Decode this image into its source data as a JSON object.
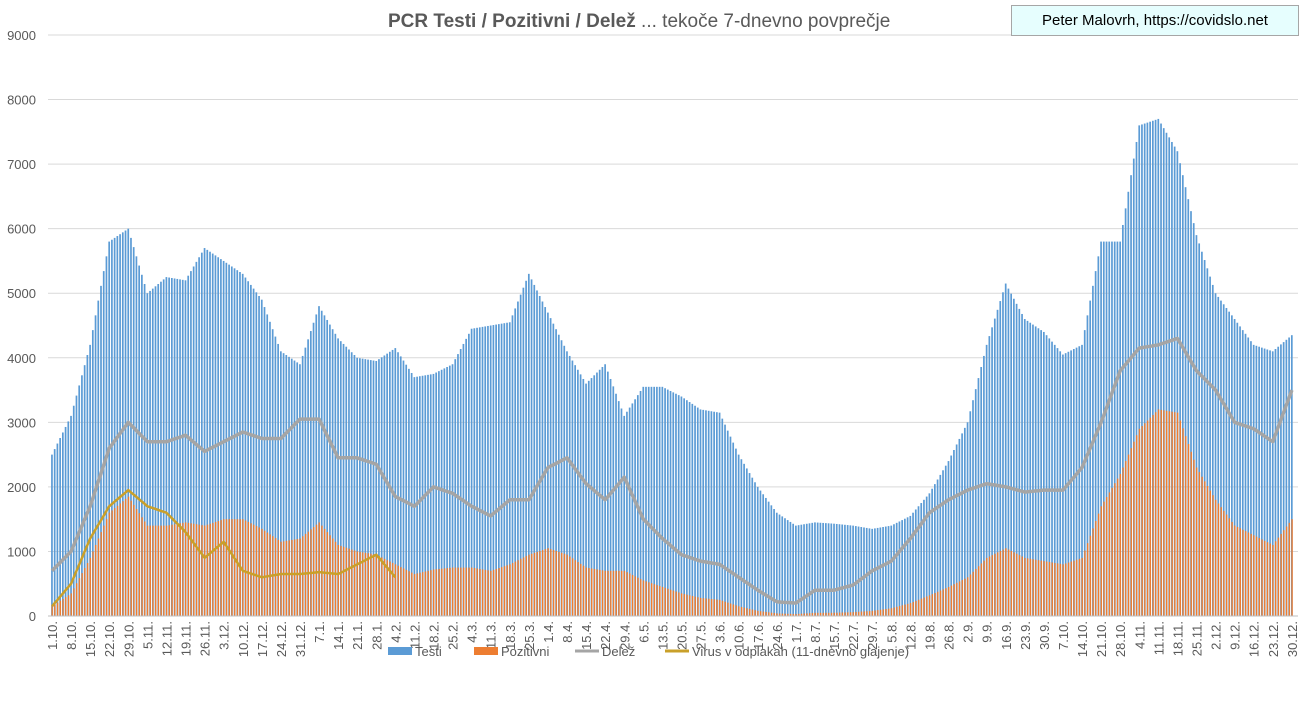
{
  "header": {
    "title_bold": "PCR Testi / Pozitivni / Delež",
    "title_rest": " ... tekoče 7-dnevno povprečje",
    "credit": "Peter Malovrh, https://covidslo.net"
  },
  "chart_data": {
    "type": "bar",
    "title": "PCR Testi / Pozitivni / Delež ... tekoče 7-dnevno povprečje",
    "xlabel": "",
    "ylabel": "",
    "ylim": [
      0,
      9000
    ],
    "yticks": [
      0,
      1000,
      2000,
      3000,
      4000,
      5000,
      6000,
      7000,
      8000,
      9000
    ],
    "grid": true,
    "legend_position": "bottom",
    "x_interval_days": 7,
    "categories": [
      "1.10.",
      "8.10.",
      "15.10.",
      "22.10.",
      "29.10.",
      "5.11.",
      "12.11.",
      "19.11.",
      "26.11.",
      "3.12.",
      "10.12.",
      "17.12.",
      "24.12.",
      "31.12.",
      "7.1.",
      "14.1.",
      "21.1.",
      "28.1.",
      "4.2.",
      "11.2.",
      "18.2.",
      "25.2.",
      "4.3.",
      "11.3.",
      "18.3.",
      "25.3.",
      "1.4.",
      "8.4.",
      "15.4.",
      "22.4.",
      "29.4.",
      "6.5.",
      "13.5.",
      "20.5.",
      "27.5.",
      "3.6.",
      "10.6.",
      "17.6.",
      "24.6.",
      "1.7.",
      "8.7.",
      "15.7.",
      "22.7.",
      "29.7.",
      "5.8.",
      "12.8.",
      "19.8.",
      "26.8.",
      "2.9.",
      "9.9.",
      "16.9.",
      "23.9.",
      "30.9.",
      "7.10.",
      "14.10.",
      "21.10.",
      "28.10.",
      "4.11.",
      "11.11.",
      "18.11.",
      "25.11.",
      "2.12.",
      "9.12.",
      "16.12.",
      "23.12.",
      "30.12."
    ],
    "series": [
      {
        "name": "Testi",
        "kind": "bar",
        "color": "#5b9bd5",
        "values": [
          2500,
          3100,
          4200,
          5800,
          6000,
          5000,
          5250,
          5200,
          5700,
          5500,
          5300,
          4900,
          4100,
          3900,
          4800,
          4300,
          4000,
          3950,
          4150,
          3700,
          3750,
          3900,
          4450,
          4500,
          4550,
          5300,
          4700,
          4100,
          3600,
          3900,
          3100,
          3550,
          3550,
          3400,
          3200,
          3150,
          2500,
          2000,
          1600,
          1400,
          1450,
          1430,
          1400,
          1350,
          1400,
          1550,
          1900,
          2400,
          3000,
          4200,
          5150,
          4600,
          4400,
          4050,
          4200,
          5800,
          5800,
          7600,
          7700,
          7200,
          5900,
          5000,
          4600,
          4200,
          4100,
          4350
        ]
      },
      {
        "name": "Pozitivni",
        "kind": "bar",
        "color": "#ed7d31",
        "values": [
          150,
          350,
          900,
          1600,
          1850,
          1400,
          1400,
          1450,
          1400,
          1500,
          1500,
          1350,
          1150,
          1200,
          1450,
          1100,
          1000,
          950,
          800,
          650,
          720,
          750,
          750,
          700,
          800,
          950,
          1050,
          950,
          750,
          700,
          700,
          550,
          450,
          350,
          280,
          250,
          150,
          80,
          40,
          30,
          50,
          50,
          60,
          80,
          120,
          200,
          320,
          450,
          600,
          900,
          1050,
          900,
          850,
          800,
          900,
          1700,
          2200,
          2900,
          3200,
          3150,
          2300,
          1800,
          1400,
          1250,
          1100,
          1500
        ]
      },
      {
        "name": "Delež",
        "kind": "line",
        "color": "#a5a5a5",
        "values": [
          700,
          1000,
          1700,
          2600,
          3000,
          2700,
          2700,
          2800,
          2550,
          2700,
          2850,
          2750,
          2750,
          3050,
          3050,
          2450,
          2450,
          2350,
          1850,
          1700,
          2000,
          1900,
          1700,
          1550,
          1800,
          1800,
          2300,
          2450,
          2050,
          1800,
          2150,
          1500,
          1200,
          950,
          850,
          800,
          600,
          400,
          220,
          200,
          400,
          400,
          480,
          700,
          850,
          1200,
          1600,
          1800,
          1950,
          2050,
          2000,
          1920,
          1950,
          1950,
          2300,
          3000,
          3800,
          4150,
          4200,
          4300,
          3800,
          3500,
          3000,
          2900,
          2700,
          3500
        ]
      },
      {
        "name": "Virus v odplakah (11-dnevno glajenje)",
        "kind": "line",
        "color": "#c9a02a",
        "values": [
          150,
          500,
          1200,
          1700,
          1950,
          1700,
          1600,
          1300,
          900,
          1150,
          700,
          600,
          650,
          650,
          680,
          650,
          800,
          950,
          600,
          null,
          null,
          null,
          null,
          null,
          null,
          null,
          null,
          null,
          null,
          null,
          null,
          null,
          null,
          null,
          null,
          null,
          null,
          null,
          null,
          null,
          null,
          null,
          null,
          null,
          null,
          null,
          null,
          null,
          null,
          null,
          null,
          null,
          null,
          null,
          null,
          null,
          null,
          null,
          null,
          null,
          null,
          null,
          null,
          null,
          null,
          null
        ]
      }
    ]
  }
}
